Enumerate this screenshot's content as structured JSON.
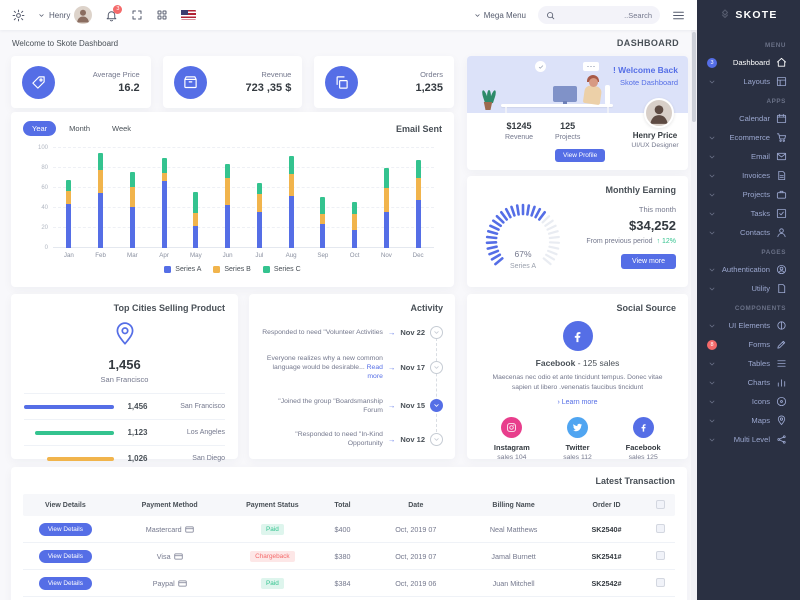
{
  "colors": {
    "primary": "#556ee6",
    "success": "#34c38f",
    "warning": "#f1b44c",
    "danger": "#f46a6a",
    "info": "#50a5f1",
    "pink": "#e83e8c",
    "sidebar": "#2a3042"
  },
  "brand": "SKOTE",
  "header": {
    "user": "Henry",
    "bell_badge": "3",
    "mega_menu": "Mega Menu",
    "search_placeholder": "..Search"
  },
  "breadcrumb": {
    "welcome": "Welcome to Skote Dashboard",
    "page": "DASHBOARD"
  },
  "sidebar": {
    "items": [
      {
        "type": "section",
        "label": "MENU"
      },
      {
        "type": "item",
        "label": "Dashboard",
        "icon": "home-icon",
        "active": true,
        "badge": "3",
        "badge_color": "blue"
      },
      {
        "type": "item",
        "label": "Layouts",
        "icon": "layout-icon",
        "chevron": true
      },
      {
        "type": "section",
        "label": "APPS"
      },
      {
        "type": "item",
        "label": "Calendar",
        "icon": "calendar-icon"
      },
      {
        "type": "item",
        "label": "Ecommerce",
        "icon": "cart-icon",
        "chevron": true
      },
      {
        "type": "item",
        "label": "Email",
        "icon": "envelope-icon",
        "chevron": true
      },
      {
        "type": "item",
        "label": "Invoices",
        "icon": "invoice-icon",
        "chevron": true
      },
      {
        "type": "item",
        "label": "Projects",
        "icon": "briefcase-icon",
        "chevron": true
      },
      {
        "type": "item",
        "label": "Tasks",
        "icon": "task-icon",
        "chevron": true
      },
      {
        "type": "item",
        "label": "Contacts",
        "icon": "contacts-icon",
        "chevron": true
      },
      {
        "type": "section",
        "label": "PAGES"
      },
      {
        "type": "item",
        "label": "Authentication",
        "icon": "user-circle-icon",
        "chevron": true
      },
      {
        "type": "item",
        "label": "Utility",
        "icon": "file-icon",
        "chevron": true
      },
      {
        "type": "section",
        "label": "COMPONENTS"
      },
      {
        "type": "item",
        "label": "UI Elements",
        "icon": "ui-icon",
        "chevron": true
      },
      {
        "type": "item",
        "label": "Forms",
        "icon": "pencil-icon",
        "badge": "8",
        "badge_color": "red"
      },
      {
        "type": "item",
        "label": "Tables",
        "icon": "table-icon",
        "chevron": true
      },
      {
        "type": "item",
        "label": "Charts",
        "icon": "chart-icon",
        "chevron": true
      },
      {
        "type": "item",
        "label": "Icons",
        "icon": "icons-icon",
        "chevron": true
      },
      {
        "type": "item",
        "label": "Maps",
        "icon": "map-pin-icon",
        "chevron": true
      },
      {
        "type": "item",
        "label": "Multi Level",
        "icon": "share-icon",
        "chevron": true
      }
    ]
  },
  "stats": [
    {
      "label": "Average Price",
      "value": "16.2",
      "icon": "tag-icon"
    },
    {
      "label": "Revenue",
      "value": "723 ,35 $",
      "icon": "archive-icon"
    },
    {
      "label": "Orders",
      "value": "1,235",
      "icon": "copy-icon"
    }
  ],
  "email_sent": {
    "title": "Email Sent",
    "tabs": [
      "Year",
      "Month",
      "Week"
    ],
    "active_tab": "Year"
  },
  "chart_data": [
    {
      "type": "bar",
      "stacked": true,
      "title": "Email Sent",
      "x": [
        "Jan",
        "Feb",
        "Mar",
        "Apr",
        "May",
        "Jun",
        "Jul",
        "Aug",
        "Sep",
        "Oct",
        "Nov",
        "Dec"
      ],
      "series": [
        {
          "name": "Series A",
          "color": "#556ee6",
          "values": [
            44,
            55,
            41,
            67,
            22,
            43,
            36,
            52,
            24,
            18,
            36,
            48
          ]
        },
        {
          "name": "Series B",
          "color": "#f1b44c",
          "values": [
            13,
            23,
            20,
            8,
            13,
            27,
            18,
            22,
            10,
            16,
            24,
            22
          ]
        },
        {
          "name": "Series C",
          "color": "#34c38f",
          "values": [
            11,
            17,
            15,
            15,
            21,
            14,
            11,
            18,
            17,
            12,
            20,
            18
          ]
        }
      ],
      "ylim": [
        0,
        100
      ],
      "yticks": [
        0,
        20,
        40,
        60,
        80,
        100
      ],
      "grid": true,
      "legend_position": "bottom"
    },
    {
      "type": "radial",
      "title": "Monthly Earning",
      "value": 67,
      "unit": "%",
      "label": "Series A",
      "color": "#556ee6"
    }
  ],
  "welcome_card": {
    "title": "! Welcome Back",
    "subtitle": "Skote Dashboard",
    "revenue_value": "$1245",
    "revenue_label": "Revenue",
    "projects_value": "125",
    "projects_label": "Projects",
    "button": "View Profile",
    "name": "Henry Price",
    "role": "UI/UX Designer"
  },
  "monthly_earning": {
    "title": "Monthly Earning",
    "period": "This month",
    "amount": "$34,252",
    "comparison": "From previous period",
    "delta": "12%",
    "delta_arrow": "↑",
    "button": "View more",
    "gauge_value": "67%",
    "gauge_label": "Series A"
  },
  "top_cities": {
    "title": "Top Cities Selling Product",
    "highlight_value": "1,456",
    "highlight_city": "San Francisco",
    "rows": [
      {
        "value": "1,456",
        "city": "San Francisco",
        "color": "#556ee6",
        "pct": 100
      },
      {
        "value": "1,123",
        "city": "Los Angeles",
        "color": "#34c38f",
        "pct": 88
      },
      {
        "value": "1,026",
        "city": "San Diego",
        "color": "#f1b44c",
        "pct": 75
      }
    ]
  },
  "activity": {
    "title": "Activity",
    "load_more": "Load More",
    "items": [
      {
        "text": "Responded to need \"Volunteer Activities",
        "date": "Nov 22",
        "active": false
      },
      {
        "text": "Everyone realizes why a new common language would be desirable...",
        "read_more": "Read more",
        "date": "Nov 17",
        "active": false
      },
      {
        "text": "\"Joined the group \"Boardsmanship Forum",
        "date": "Nov 15",
        "active": true
      },
      {
        "text": "\"Responded to need \"In-Kind Opportunity",
        "date": "Nov 12",
        "active": false
      }
    ]
  },
  "social": {
    "title": "Social Source",
    "headline_name": "Facebook",
    "headline_sales": "- 125 sales",
    "desc": "Maecenas nec odio et ante tincidunt tempus. Donec vitae sapien ut libero .venenatis faucibus tincidunt",
    "learn_more": "› Learn more",
    "accounts": [
      {
        "name": "Instagram",
        "sales": "sales 104",
        "color": "#e83e8c",
        "icon": "instagram-icon"
      },
      {
        "name": "Twitter",
        "sales": "sales 112",
        "color": "#50a5f1",
        "icon": "twitter-icon"
      },
      {
        "name": "Facebook",
        "sales": "sales 125",
        "color": "#556ee6",
        "icon": "facebook-icon"
      }
    ]
  },
  "transactions": {
    "title": "Latest Transaction",
    "button": "View Details",
    "columns": [
      "View Details",
      "Payment Method",
      "Payment Status",
      "Total",
      "Date",
      "Billing Name",
      "Order ID"
    ],
    "rows": [
      {
        "method": "Mastercard",
        "status": "Paid",
        "total": "$400",
        "date": "Oct, 2019 07",
        "name": "Neal Matthews",
        "id": "SK2540#"
      },
      {
        "method": "Visa",
        "status": "Chargeback",
        "total": "$380",
        "date": "Oct, 2019 07",
        "name": "Jamal Burnett",
        "id": "SK2541#"
      },
      {
        "method": "Paypal",
        "status": "Paid",
        "total": "$384",
        "date": "Oct, 2019 06",
        "name": "Juan Mitchell",
        "id": "SK2542#"
      },
      {
        "method": "Mastercard",
        "status": "Paid",
        "total": "$412",
        "date": "Oct, 2019 05",
        "name": "Barry Dick",
        "id": "SK2543#"
      }
    ]
  }
}
